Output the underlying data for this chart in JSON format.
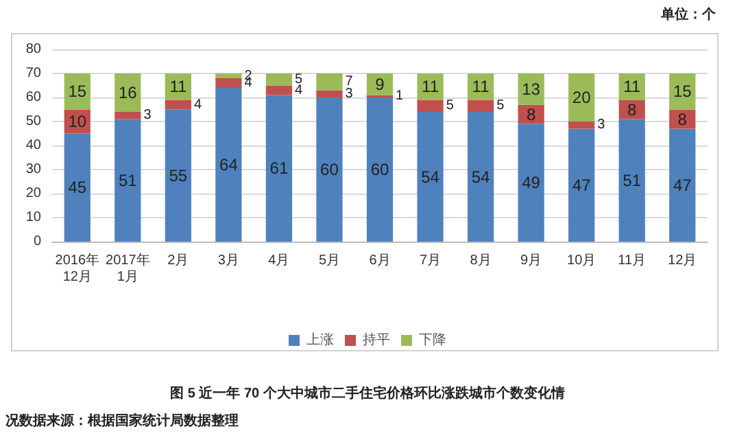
{
  "chart_data": {
    "type": "bar",
    "stacked": true,
    "title": "图 5 近一年 70 个大中城市二手住宅价格环比涨跌城市个数变化情",
    "ylabel": "单位：个",
    "annotations": [
      "况数据来源：根据国家统计局数据整理"
    ],
    "categories": [
      "2016年\n12月",
      "2017年\n1月",
      "2月",
      "3月",
      "4月",
      "5月",
      "6月",
      "7月",
      "8月",
      "9月",
      "10月",
      "11月",
      "12月"
    ],
    "series": [
      {
        "name": "上涨",
        "color": "#4f81bd",
        "values": [
          45,
          51,
          55,
          64,
          61,
          60,
          60,
          54,
          54,
          49,
          47,
          51,
          47
        ]
      },
      {
        "name": "持平",
        "color": "#c0504d",
        "values": [
          10,
          3,
          4,
          4,
          4,
          3,
          1,
          5,
          5,
          8,
          3,
          8,
          8
        ]
      },
      {
        "name": "下降",
        "color": "#9bbb59",
        "values": [
          15,
          16,
          11,
          2,
          5,
          7,
          9,
          11,
          11,
          13,
          20,
          11,
          15
        ]
      }
    ],
    "ylim": [
      0,
      80
    ],
    "yticks": [
      0,
      10,
      20,
      30,
      40,
      50,
      60,
      70,
      80
    ],
    "grid": "y",
    "legend": "bottom",
    "data_labels": true
  }
}
